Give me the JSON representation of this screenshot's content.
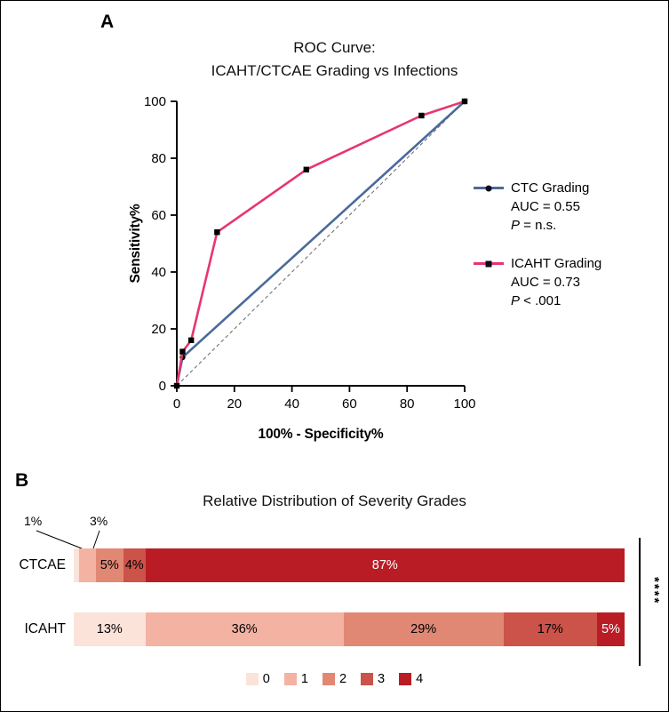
{
  "panels": {
    "a": "A",
    "b": "B"
  },
  "chart_data": [
    {
      "type": "line",
      "subtype": "roc",
      "title_line1": "ROC Curve:",
      "title_line2": "ICAHT/CTCAE Grading vs Infections",
      "xlabel": "100% - Specificity%",
      "ylabel": "Sensitivity%",
      "xlim": [
        0,
        100
      ],
      "ylim": [
        0,
        100
      ],
      "xticks": [
        0,
        20,
        40,
        60,
        80,
        100
      ],
      "yticks": [
        0,
        20,
        40,
        60,
        80,
        100
      ],
      "grid": false,
      "diagonal_reference": true,
      "series": [
        {
          "name": "CTC Grading",
          "auc_label": "AUC = 0.55",
          "p_italic": "P",
          "p_rest": " = n.s.",
          "color": "#4b6a9b",
          "marker": "circle",
          "marker_color": "#000000",
          "points": [
            [
              0,
              0
            ],
            [
              2,
              10
            ],
            [
              100,
              100
            ]
          ]
        },
        {
          "name": "ICAHT Grading",
          "auc_label": "AUC = 0.73",
          "p_italic": "P",
          "p_rest": " < .001",
          "color": "#e7366e",
          "marker": "square",
          "marker_color": "#000000",
          "points": [
            [
              0,
              0
            ],
            [
              2,
              12
            ],
            [
              5,
              16
            ],
            [
              14,
              54
            ],
            [
              45,
              76
            ],
            [
              85,
              95
            ],
            [
              100,
              100
            ]
          ]
        }
      ],
      "legend_position": "right"
    },
    {
      "type": "bar",
      "subtype": "horizontal-stacked",
      "title": "Relative Distribution of Severity Grades",
      "categories": [
        "CTCAE",
        "ICAHT"
      ],
      "grade_labels": [
        "0",
        "1",
        "2",
        "3",
        "4"
      ],
      "grade_colors": [
        "#fbe3da",
        "#f3b2a2",
        "#e18874",
        "#cc5349",
        "#b91c25"
      ],
      "series": [
        {
          "name": "CTCAE",
          "values": [
            1,
            3,
            5,
            4,
            87
          ]
        },
        {
          "name": "ICAHT",
          "values": [
            13,
            36,
            29,
            17,
            5
          ]
        }
      ],
      "value_suffix": "%",
      "outside_labels": [
        "1%",
        "3%"
      ],
      "significance": "****",
      "legend_position": "bottom"
    }
  ]
}
